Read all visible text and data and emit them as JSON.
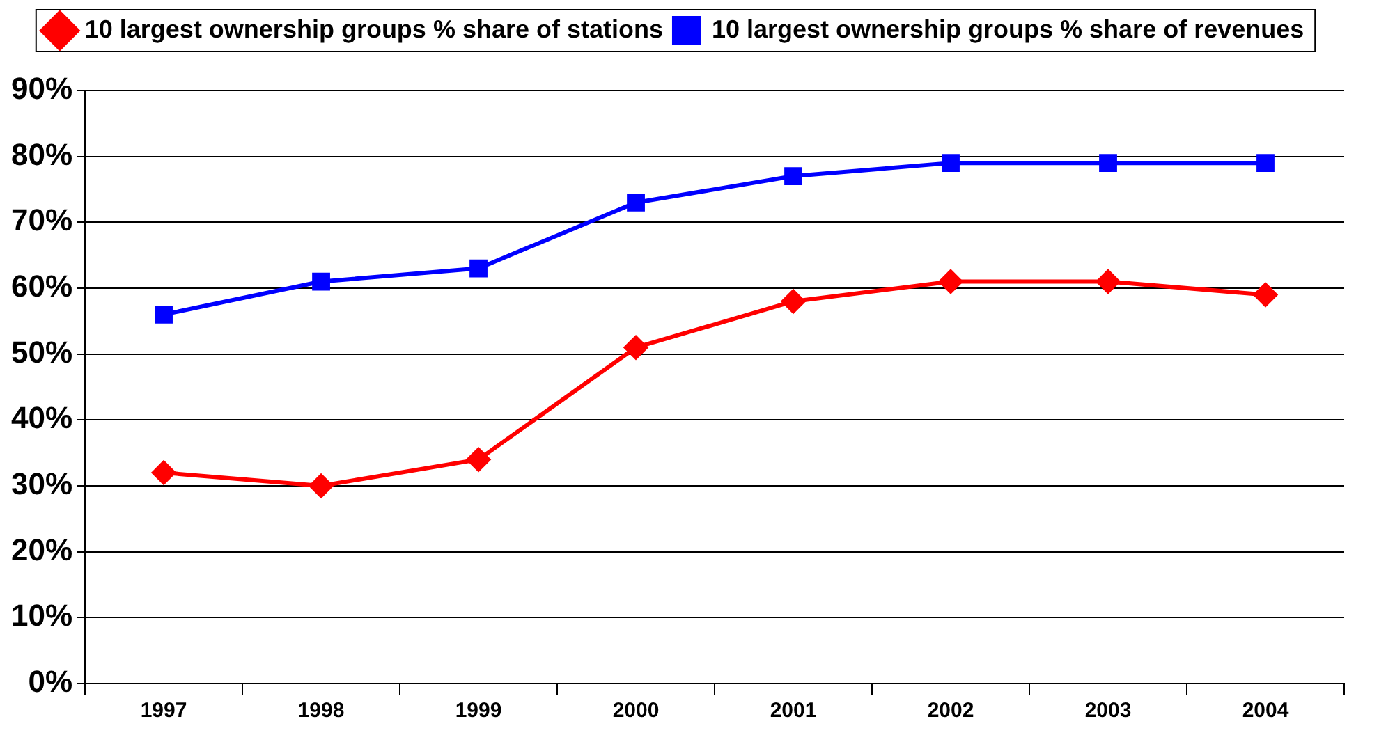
{
  "chart_data": {
    "type": "line",
    "categories": [
      "1997",
      "1998",
      "1999",
      "2000",
      "2001",
      "2002",
      "2003",
      "2004"
    ],
    "series": [
      {
        "name": "10 largest ownership groups % share of stations",
        "color": "#ff0000",
        "marker": "diamond",
        "values": [
          32,
          30,
          34,
          51,
          58,
          61,
          61,
          59
        ]
      },
      {
        "name": "10 largest ownership groups % share of revenues",
        "color": "#0000ff",
        "marker": "square",
        "values": [
          56,
          61,
          63,
          73,
          77,
          79,
          79,
          79
        ]
      }
    ],
    "ylim": [
      0,
      90
    ],
    "yticks": [
      {
        "value": 0,
        "label": "0%"
      },
      {
        "value": 10,
        "label": "10%"
      },
      {
        "value": 20,
        "label": "20%"
      },
      {
        "value": 30,
        "label": "30%"
      },
      {
        "value": 40,
        "label": "40%"
      },
      {
        "value": 50,
        "label": "50%"
      },
      {
        "value": 60,
        "label": "60%"
      },
      {
        "value": 70,
        "label": "70%"
      },
      {
        "value": 80,
        "label": "80%"
      },
      {
        "value": 90,
        "label": "90%"
      }
    ],
    "grid": "y",
    "legend": "top",
    "line_style": "solid"
  }
}
